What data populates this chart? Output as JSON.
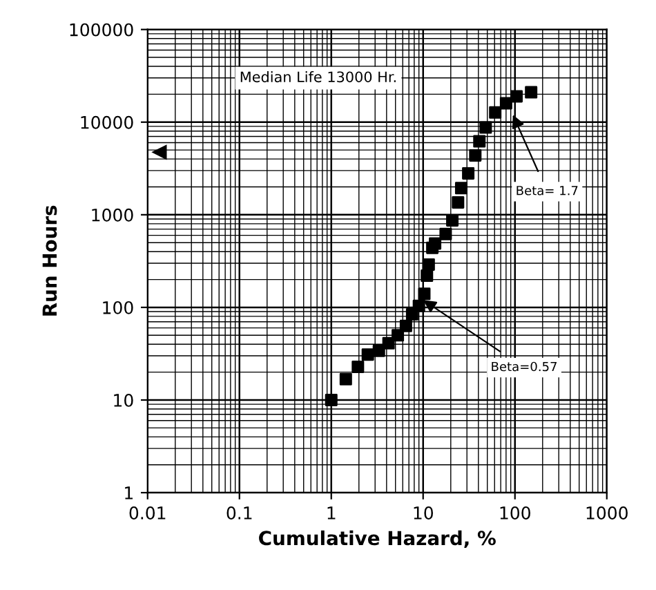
{
  "chart_data": {
    "type": "scatter",
    "xlabel": "Cumulative Hazard, %",
    "ylabel": "Run Hours",
    "log": "xy",
    "grid": true,
    "marker": "square",
    "xlim": [
      0.01,
      1000
    ],
    "xticks": [
      0.01,
      0.1,
      1,
      10,
      100,
      1000
    ],
    "ylim": [
      1,
      100000
    ],
    "yticks": [
      1,
      10,
      100,
      1000,
      10000,
      100000
    ],
    "series": [
      {
        "color": "#000000",
        "x": [
          1,
          1.44,
          1.95,
          2.5,
          3.3,
          4.2,
          5.3,
          6.5,
          7.6,
          9,
          10.3,
          11,
          11.5,
          12.6,
          13.5,
          17.6,
          20.8,
          24,
          26,
          31,
          37,
          41,
          48,
          61,
          80,
          104,
          150
        ],
        "values": [
          10,
          16.8,
          22.8,
          31,
          34,
          41,
          50,
          63,
          84,
          104,
          140,
          220,
          290,
          440,
          490,
          620,
          870,
          1360,
          1940,
          2800,
          4370,
          6200,
          8750,
          12700,
          16000,
          19000,
          21000
        ]
      }
    ],
    "annotations": [
      "Median Life 13000 Hr.",
      {
        "text": "Beta= 1.7",
        "x": 95,
        "y": 12000
      },
      {
        "text": "Beta=0.57",
        "x": 10,
        "y": 120
      }
    ]
  }
}
